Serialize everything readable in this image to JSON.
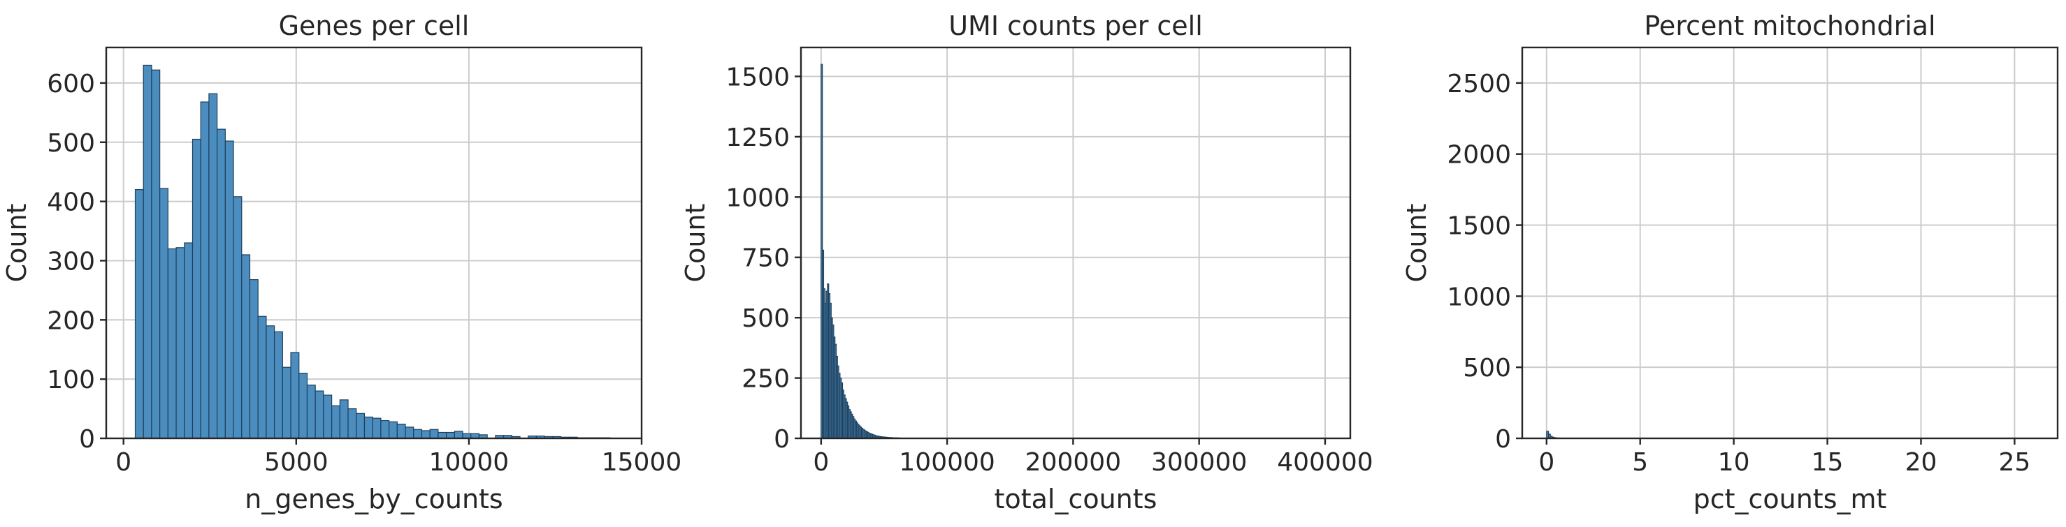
{
  "chart_data": [
    {
      "type": "bar",
      "title": "Genes per cell",
      "xlabel": "n_genes_by_counts",
      "ylabel": "Count",
      "xlim": [
        -500,
        15000
      ],
      "ylim": [
        0,
        660
      ],
      "xticks": [
        0,
        5000,
        10000,
        15000
      ],
      "yticks": [
        0,
        100,
        200,
        300,
        400,
        500,
        600
      ],
      "grid": true,
      "bin_start": 340,
      "bin_width": 237,
      "values": [
        420,
        630,
        622,
        422,
        320,
        322,
        330,
        505,
        568,
        582,
        522,
        502,
        408,
        310,
        268,
        206,
        190,
        180,
        120,
        145,
        110,
        90,
        80,
        73,
        55,
        65,
        50,
        42,
        36,
        34,
        30,
        28,
        24,
        19,
        15,
        13,
        15,
        10,
        10,
        12,
        8,
        8,
        6,
        0,
        5,
        5,
        3,
        0,
        4,
        4,
        3,
        3,
        2,
        2,
        1,
        1,
        1,
        1
      ]
    },
    {
      "type": "bar",
      "title": "UMI counts per cell",
      "xlabel": "total_counts",
      "ylabel": "Count",
      "xlim": [
        -16000,
        420000
      ],
      "ylim": [
        0,
        1620
      ],
      "xticks": [
        0,
        100000,
        200000,
        300000,
        400000
      ],
      "yticks": [
        0,
        250,
        500,
        750,
        1000,
        1250,
        1500
      ],
      "grid": true,
      "bin_start": 0,
      "bin_width": 1000,
      "values": [
        1550,
        780,
        620,
        560,
        610,
        640,
        600,
        560,
        500,
        470,
        420,
        390,
        340,
        300,
        270,
        250,
        230,
        200,
        180,
        165,
        150,
        135,
        120,
        110,
        100,
        90,
        80,
        72,
        65,
        58,
        52,
        47,
        42,
        38,
        34,
        30,
        27,
        24,
        21,
        19,
        17,
        15,
        13,
        11,
        10,
        9,
        8,
        7,
        6,
        6,
        5,
        5,
        4,
        4,
        3,
        3,
        3,
        2,
        2,
        2,
        2,
        2,
        1,
        1,
        1,
        1,
        1,
        1,
        1,
        1,
        1,
        1,
        1,
        1,
        1,
        1,
        1,
        1,
        1,
        1
      ]
    },
    {
      "type": "bar",
      "title": "Percent mitochondrial",
      "xlabel": "pct_counts_mt",
      "ylabel": "Count",
      "xlim": [
        -1.3,
        27.3
      ],
      "ylim": [
        0,
        2750
      ],
      "xticks": [
        0,
        5,
        10,
        15,
        20,
        25
      ],
      "yticks": [
        0,
        500,
        1000,
        1500,
        2000,
        2500
      ],
      "grid": true,
      "bin_start": 0,
      "bin_width": 0.1,
      "values": [
        50,
        30,
        15,
        8,
        5,
        3,
        2,
        1
      ]
    }
  ]
}
